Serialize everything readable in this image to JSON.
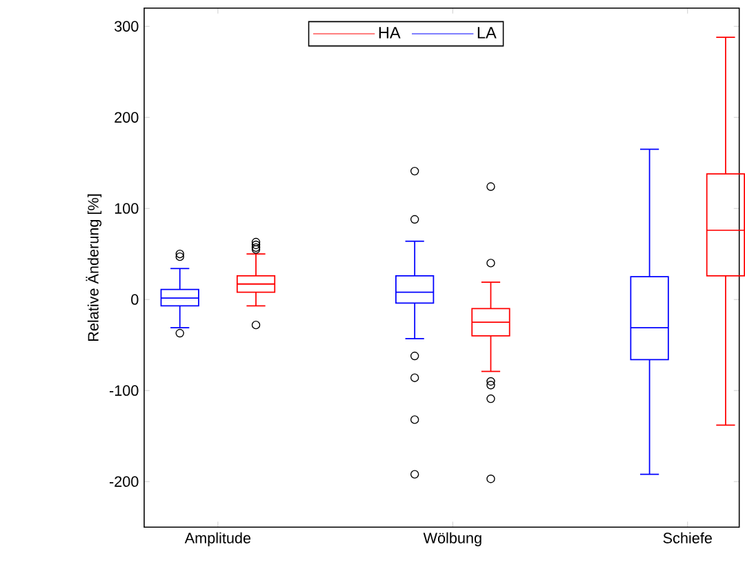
{
  "chart_data": {
    "type": "box",
    "categories": [
      "Amplitude",
      "Wölbung",
      "Schiefe"
    ],
    "ylabel": "Relative Änderung [%]",
    "ylim": [
      -250,
      320
    ],
    "yticks": [
      -200,
      -100,
      0,
      100,
      200,
      300
    ],
    "legend": "top",
    "grid": false,
    "series": [
      {
        "name": "HA",
        "color": "#ff0000",
        "boxes": [
          {
            "low": -7,
            "q1": 8,
            "median": 17,
            "q3": 26,
            "high": 50,
            "outliers": [
              63,
              60,
              57,
              55,
              -28
            ]
          },
          {
            "low": -79,
            "q1": -40,
            "median": -25,
            "q3": -10,
            "high": 19,
            "outliers": [
              124,
              40,
              -90,
              -94,
              -109,
              -197
            ]
          },
          {
            "low": -138,
            "q1": 26,
            "median": 76,
            "q3": 138,
            "high": 288
          }
        ]
      },
      {
        "name": "LA",
        "color": "#0000ff",
        "boxes": [
          {
            "low": -31,
            "q1": -7,
            "median": 1.5,
            "q3": 11,
            "high": 34,
            "outliers": [
              50,
              47,
              -37
            ]
          },
          {
            "low": -43,
            "q1": -4,
            "median": 8,
            "q3": 26,
            "high": 64,
            "outliers": [
              141,
              88,
              -62,
              -86,
              -132,
              -192
            ]
          },
          {
            "low": -192,
            "q1": -66,
            "median": -31,
            "q3": 25,
            "high": 165
          }
        ]
      }
    ]
  }
}
